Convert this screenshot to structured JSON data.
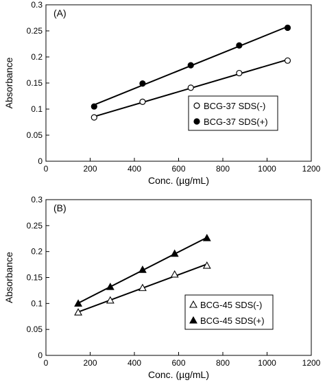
{
  "chart_data": [
    {
      "type": "scatter",
      "panel_label": "(A)",
      "xlabel": "Conc. (µg/mL)",
      "ylabel": "Absorbance",
      "xlim": [
        0,
        1200
      ],
      "ylim": [
        0,
        0.3
      ],
      "xticks": [
        0,
        200,
        400,
        600,
        800,
        1000,
        1200
      ],
      "yticks": [
        0,
        0.05,
        0.1,
        0.15,
        0.2,
        0.25,
        0.3
      ],
      "ytick_labels": [
        "0",
        "0.05",
        "0.1",
        "0.15",
        "0.2",
        "0.25",
        "0.3"
      ],
      "legend_position": "lower-right",
      "grid": false,
      "series": [
        {
          "name": "BCG-37 SDS(-)",
          "marker": "open-circle",
          "x": [
            218,
            437,
            655,
            874,
            1093
          ],
          "y": [
            0.084,
            0.114,
            0.141,
            0.169,
            0.193
          ]
        },
        {
          "name": "BCG-37 SDS(+)",
          "marker": "filled-circle",
          "x": [
            218,
            437,
            655,
            874,
            1093
          ],
          "y": [
            0.105,
            0.149,
            0.184,
            0.222,
            0.256
          ]
        }
      ]
    },
    {
      "type": "scatter",
      "panel_label": "(B)",
      "xlabel": "Conc. (µg/mL)",
      "ylabel": "Absorbance",
      "xlim": [
        0,
        1200
      ],
      "ylim": [
        0,
        0.3
      ],
      "xticks": [
        0,
        200,
        400,
        600,
        800,
        1000,
        1200
      ],
      "yticks": [
        0,
        0.05,
        0.1,
        0.15,
        0.2,
        0.25,
        0.3
      ],
      "ytick_labels": [
        "0",
        "0.05",
        "0.1",
        "0.15",
        "0.2",
        "0.25",
        "0.3"
      ],
      "legend_position": "lower-right",
      "grid": false,
      "series": [
        {
          "name": "BCG-45 SDS(-)",
          "marker": "open-triangle",
          "x": [
            146,
            291,
            437,
            582,
            728
          ],
          "y": [
            0.083,
            0.106,
            0.13,
            0.156,
            0.173
          ]
        },
        {
          "name": "BCG-45 SDS(+)",
          "marker": "filled-triangle",
          "x": [
            146,
            291,
            437,
            582,
            728
          ],
          "y": [
            0.1,
            0.132,
            0.165,
            0.196,
            0.226
          ]
        }
      ]
    }
  ]
}
